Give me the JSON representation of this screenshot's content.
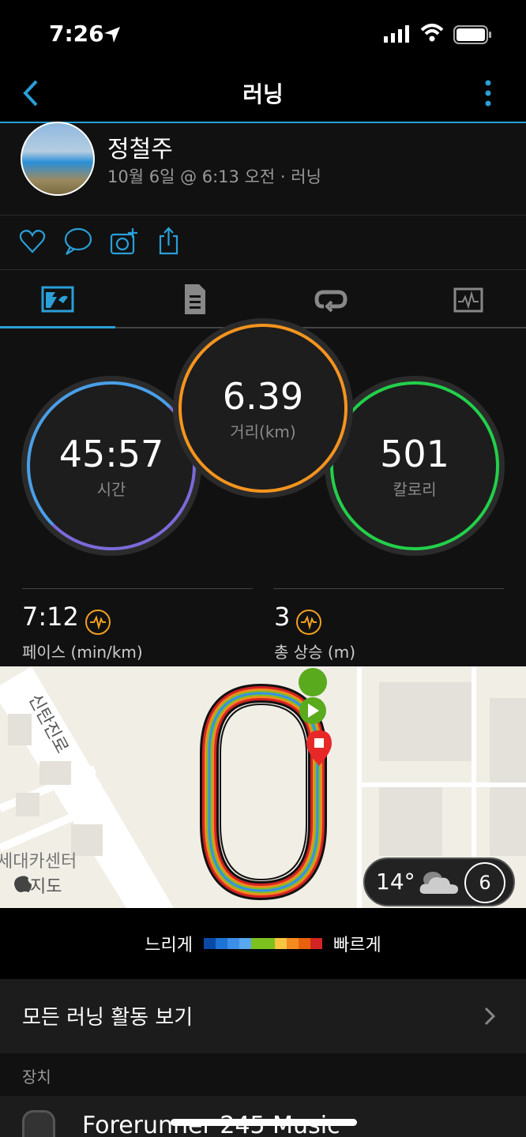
{
  "status_bar": {
    "time": "7:26"
  },
  "nav": {
    "title": "러닝"
  },
  "header": {
    "user_name": "정철주",
    "meta": "10월 6일 @ 6:13 오전 · 러닝"
  },
  "actions": [
    "heart-icon",
    "comment-icon",
    "add-photo-icon",
    "share-icon"
  ],
  "tabs": [
    {
      "icon": "map-overview-icon",
      "active": true
    },
    {
      "icon": "details-list-icon"
    },
    {
      "icon": "laps-icon"
    },
    {
      "icon": "chart-icon"
    }
  ],
  "circles": {
    "time": {
      "value": "45:57",
      "label": "시간",
      "color": "#4a9fe8"
    },
    "distance": {
      "value": "6.39",
      "label": "거리(km)",
      "color": "#f5941e"
    },
    "calories": {
      "value": "501",
      "label": "칼로리",
      "color": "#22d04a"
    }
  },
  "stats": [
    {
      "value": "7:12",
      "label": "페이스 (min/km)"
    },
    {
      "value": "3",
      "label": "총 상승 (m)"
    }
  ],
  "map": {
    "street_label": "신탄진로",
    "place_label": "세대카센터",
    "attribution": "지도",
    "weather": {
      "temp": "14°",
      "icon": "cloud-icon",
      "wind": "6"
    }
  },
  "legend": {
    "slow": "느리게",
    "fast": "빠르게",
    "colors": [
      "#0a4aa6",
      "#1e73d6",
      "#3d8ee8",
      "#58a8f0",
      "#7cc11e",
      "#7cc11e",
      "#f9c440",
      "#f58a20",
      "#e8620e",
      "#d42424"
    ]
  },
  "all_runs": {
    "label": "모든 러닝 활동 보기"
  },
  "device": {
    "section": "장치",
    "name": "Forerunner 245 Music"
  }
}
